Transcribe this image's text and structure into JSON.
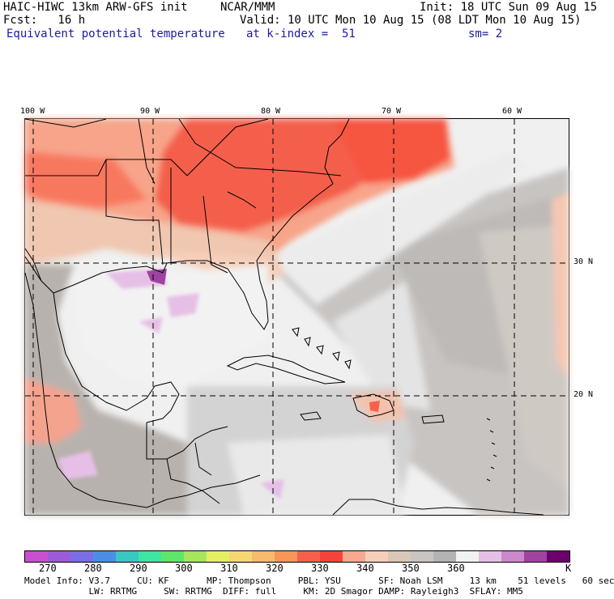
{
  "header": {
    "model": "HAIC-HIWC 13km ARW-GFS init",
    "org": "NCAR/MMM",
    "init": "Init: 18 UTC Sun 09 Aug 15",
    "fcst": "Fcst:   16 h",
    "valid": "Valid: 10 UTC Mon 10 Aug 15 (08 LDT Mon 10 Aug 15)",
    "field": "Equivalent potential temperature",
    "level": "at k-index =  51",
    "smooth": "sm= 2"
  },
  "axes": {
    "lon_labels": [
      "100 W",
      "90 W",
      "80 W",
      "70 W",
      "60 W"
    ],
    "lat_labels": [
      "30 N",
      "20 N"
    ]
  },
  "colorbar": {
    "colors": [
      "#c84fd0",
      "#9c5cd9",
      "#7b6ee6",
      "#4c8ee6",
      "#38c8c2",
      "#3ee6a3",
      "#5fe66a",
      "#a7e65c",
      "#e6ef61",
      "#f6d772",
      "#f8bb6b",
      "#f99559",
      "#f8604e",
      "#f7443a",
      "#f9a890",
      "#f5cfba",
      "#dbc7b8",
      "#c9c4c0",
      "#b3b3b3",
      "#f2f2f2",
      "#e6bfe6",
      "#cc88cc",
      "#a0449f",
      "#6e006e"
    ],
    "labels": [
      "270",
      "280",
      "290",
      "300",
      "310",
      "320",
      "330",
      "340",
      "350",
      "360",
      "K"
    ]
  },
  "info_lines": {
    "line1": "Model Info: V3.7     CU: KF       MP: Thompson     PBL: YSU       SF: Noah LSM     13 km    51 levels   60 sec",
    "line2": "            LW: RRTMG     SW: RRTMG  DIFF: full     KM: 2D Smagor DAMP: Rayleigh3  SFLAY: MM5"
  }
}
